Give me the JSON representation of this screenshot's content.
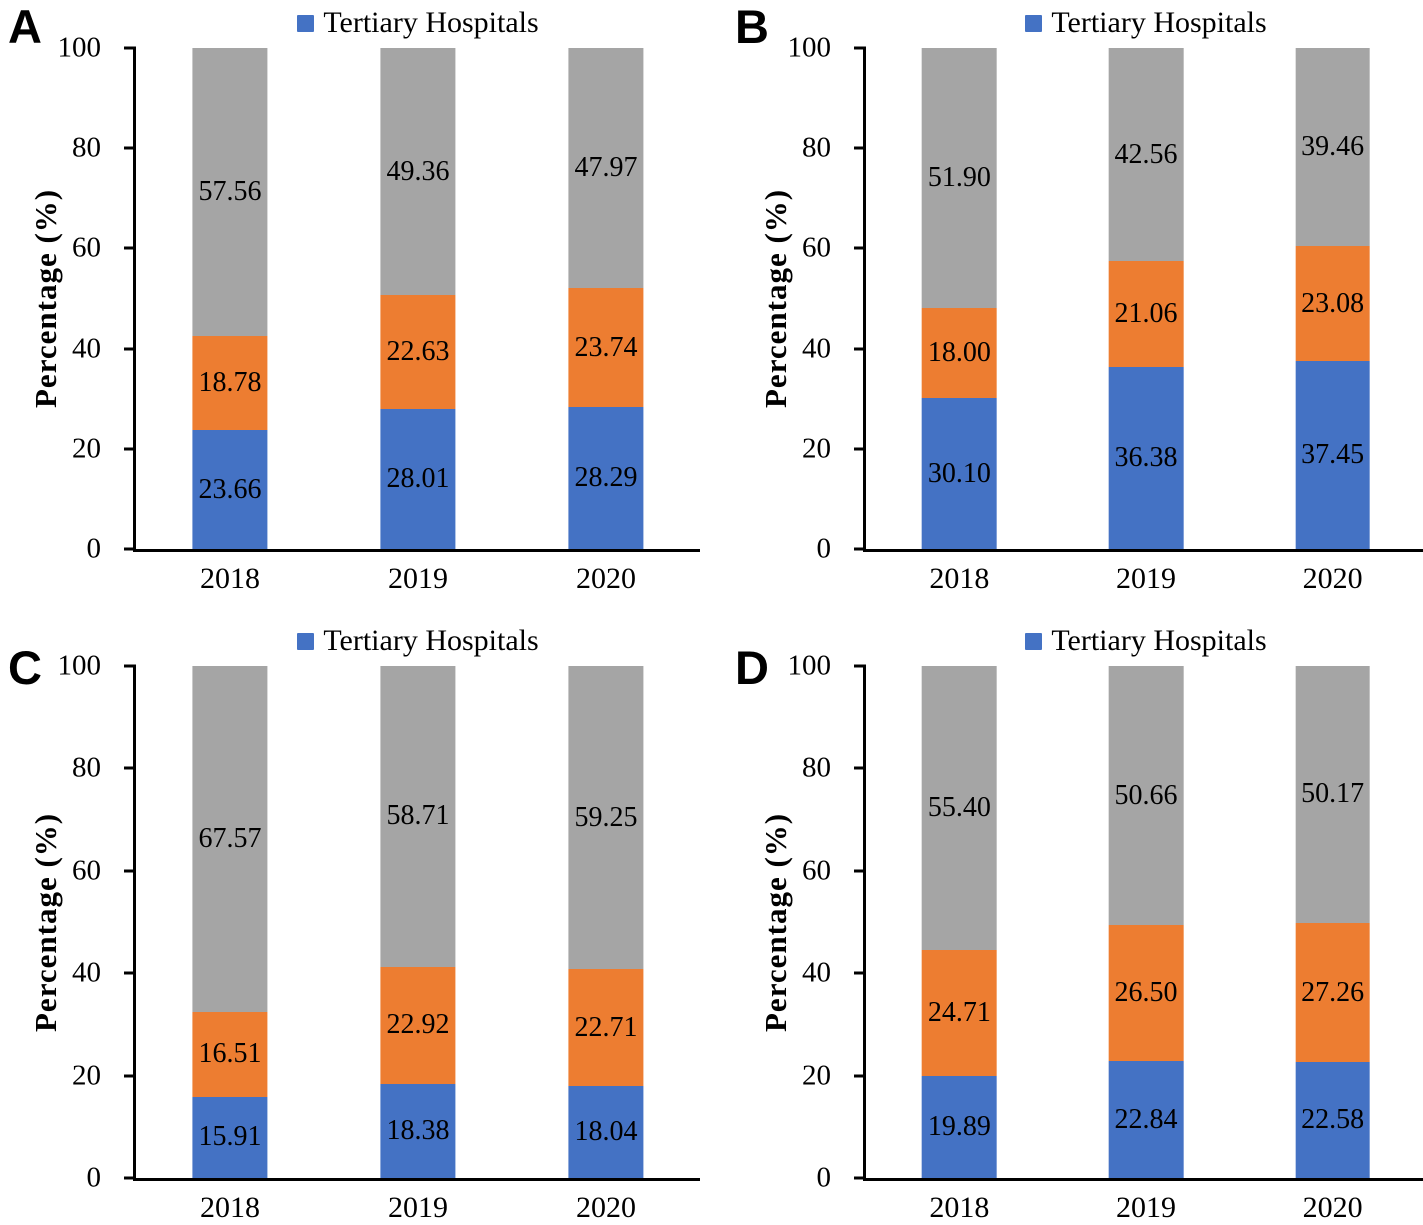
{
  "figure": {
    "background": "#ffffff",
    "panel_letters": [
      "A",
      "B",
      "C",
      "D"
    ]
  },
  "chart_data": [
    {
      "type": "bar",
      "stacked": true,
      "panel": "A",
      "title": "",
      "xlabel": "",
      "ylabel": "Percentage (%)",
      "ylim": [
        0,
        100
      ],
      "yticks": [
        0,
        20,
        40,
        60,
        80,
        100
      ],
      "grid": false,
      "categories": [
        "2018",
        "2019",
        "2020"
      ],
      "series": [
        {
          "name": "Tertiary Hospitals",
          "color_name": "blue",
          "color": "#4472C4",
          "values": [
            23.66,
            28.01,
            28.29
          ]
        },
        {
          "name": "",
          "color_name": "orange",
          "color": "#ED7D31",
          "values": [
            18.78,
            22.63,
            23.74
          ]
        },
        {
          "name": "",
          "color_name": "gray",
          "color": "#A5A5A5",
          "values": [
            57.56,
            49.36,
            47.97
          ]
        }
      ],
      "legend": {
        "position": "top",
        "entries": [
          {
            "label": "Tertiary Hospitals",
            "color": "#4472C4"
          }
        ]
      }
    },
    {
      "type": "bar",
      "stacked": true,
      "panel": "B",
      "title": "",
      "xlabel": "",
      "ylabel": "Percentage (%)",
      "ylim": [
        0,
        100
      ],
      "yticks": [
        0,
        20,
        40,
        60,
        80,
        100
      ],
      "grid": false,
      "categories": [
        "2018",
        "2019",
        "2020"
      ],
      "series": [
        {
          "name": "Tertiary Hospitals",
          "color_name": "blue",
          "color": "#4472C4",
          "values": [
            30.1,
            36.38,
            37.45
          ]
        },
        {
          "name": "",
          "color_name": "orange",
          "color": "#ED7D31",
          "values": [
            18.0,
            21.06,
            23.08
          ]
        },
        {
          "name": "",
          "color_name": "gray",
          "color": "#A5A5A5",
          "values": [
            51.9,
            42.56,
            39.46
          ]
        }
      ],
      "legend": {
        "position": "top",
        "entries": [
          {
            "label": "Tertiary Hospitals",
            "color": "#4472C4"
          }
        ]
      }
    },
    {
      "type": "bar",
      "stacked": true,
      "panel": "C",
      "title": "",
      "xlabel": "",
      "ylabel": "Percentage (%)",
      "ylim": [
        0,
        100
      ],
      "yticks": [
        0,
        20,
        40,
        60,
        80,
        100
      ],
      "grid": false,
      "categories": [
        "2018",
        "2019",
        "2020"
      ],
      "series": [
        {
          "name": "Tertiary Hospitals",
          "color_name": "blue",
          "color": "#4472C4",
          "values": [
            15.91,
            18.38,
            18.04
          ]
        },
        {
          "name": "",
          "color_name": "orange",
          "color": "#ED7D31",
          "values": [
            16.51,
            22.92,
            22.71
          ]
        },
        {
          "name": "",
          "color_name": "gray",
          "color": "#A5A5A5",
          "values": [
            67.57,
            58.71,
            59.25
          ]
        }
      ],
      "legend": {
        "position": "top",
        "entries": [
          {
            "label": "Tertiary Hospitals",
            "color": "#4472C4"
          }
        ]
      }
    },
    {
      "type": "bar",
      "stacked": true,
      "panel": "D",
      "title": "",
      "xlabel": "",
      "ylabel": "Percentage (%)",
      "ylim": [
        0,
        100
      ],
      "yticks": [
        0,
        20,
        40,
        60,
        80,
        100
      ],
      "grid": false,
      "categories": [
        "2018",
        "2019",
        "2020"
      ],
      "series": [
        {
          "name": "Tertiary Hospitals",
          "color_name": "blue",
          "color": "#4472C4",
          "values": [
            19.89,
            22.84,
            22.58
          ]
        },
        {
          "name": "",
          "color_name": "orange",
          "color": "#ED7D31",
          "values": [
            24.71,
            26.5,
            27.26
          ]
        },
        {
          "name": "",
          "color_name": "gray",
          "color": "#A5A5A5",
          "values": [
            55.4,
            50.66,
            50.17
          ]
        }
      ],
      "legend": {
        "position": "top",
        "entries": [
          {
            "label": "Tertiary Hospitals",
            "color": "#4472C4"
          }
        ]
      }
    }
  ]
}
